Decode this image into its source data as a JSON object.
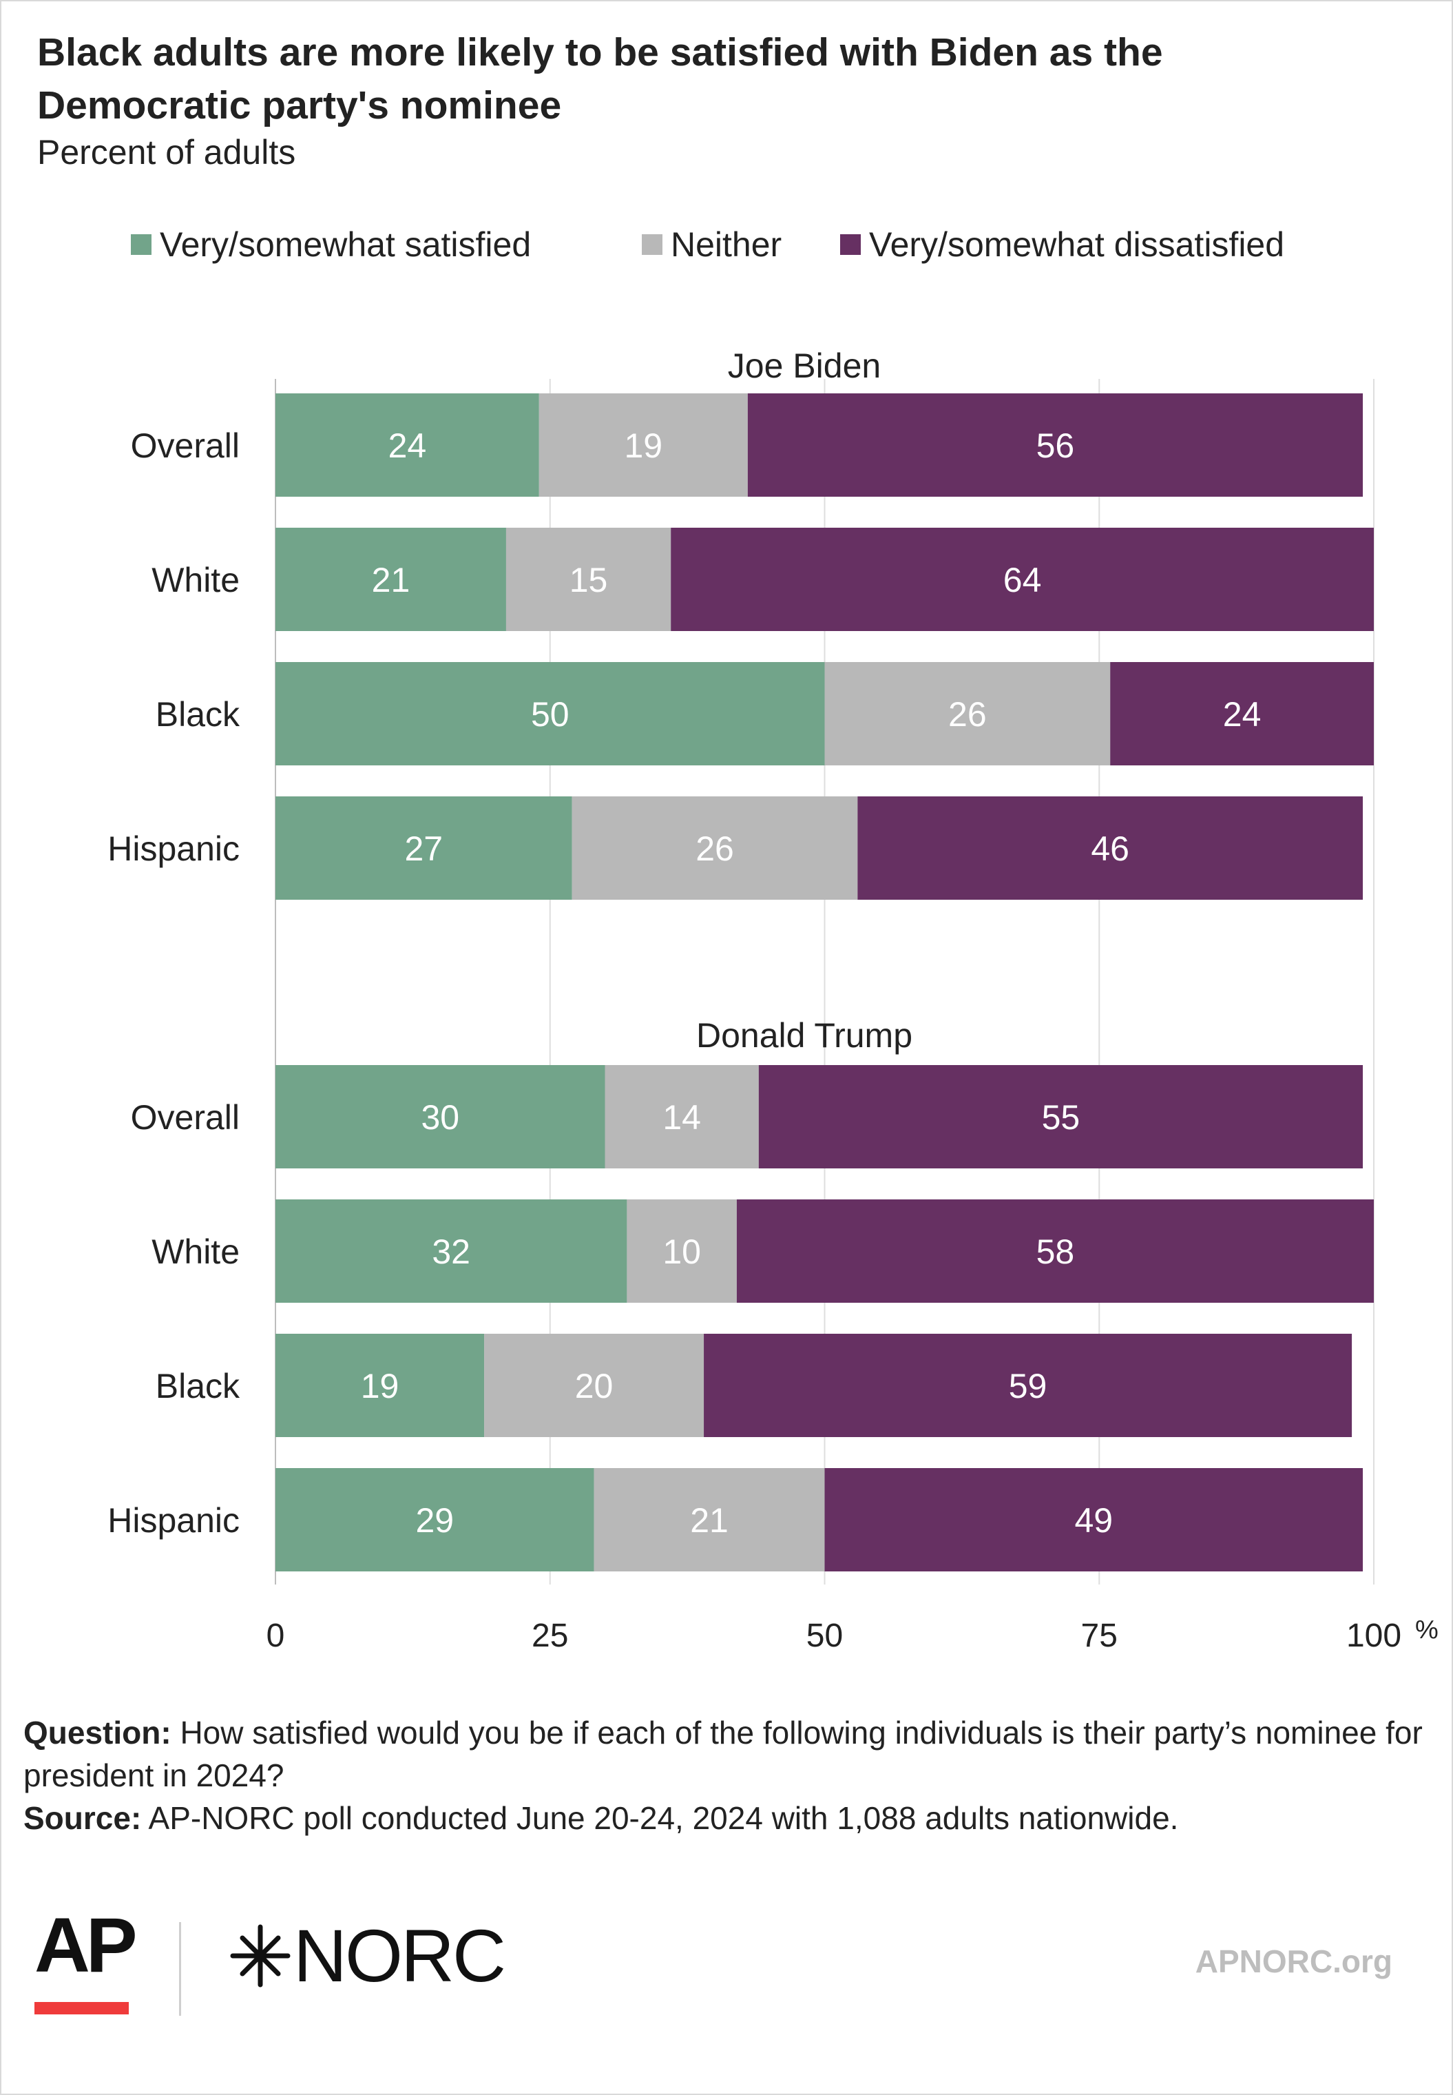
{
  "title": "Black adults are more likely to be satisfied with Biden as the Democratic party's nominee",
  "subtitle": "Percent of adults",
  "legend": [
    {
      "label": "Very/somewhat satisfied",
      "color": "#72a48a"
    },
    {
      "label": "Neither",
      "color": "#b8b8b8"
    },
    {
      "label": "Very/somewhat dissatisfied",
      "color": "#663062"
    }
  ],
  "chart_data": {
    "type": "bar",
    "orientation": "horizontal",
    "stacked": true,
    "xlim": [
      0,
      100
    ],
    "x_ticks": [
      "0",
      "25",
      "50",
      "75",
      "100"
    ],
    "x_unit": "%",
    "grid": true,
    "legend_position": "top",
    "series": [
      {
        "name": "Very/somewhat satisfied",
        "color": "#72a48a"
      },
      {
        "name": "Neither",
        "color": "#b8b8b8"
      },
      {
        "name": "Very/somewhat dissatisfied",
        "color": "#663062"
      }
    ],
    "panels": [
      {
        "title": "Joe Biden",
        "categories": [
          "Overall",
          "White",
          "Black",
          "Hispanic"
        ],
        "values": [
          [
            24,
            19,
            56
          ],
          [
            21,
            15,
            64
          ],
          [
            50,
            26,
            24
          ],
          [
            27,
            26,
            46
          ]
        ]
      },
      {
        "title": "Donald Trump",
        "categories": [
          "Overall",
          "White",
          "Black",
          "Hispanic"
        ],
        "values": [
          [
            30,
            14,
            55
          ],
          [
            32,
            10,
            58
          ],
          [
            19,
            20,
            59
          ],
          [
            29,
            21,
            49
          ]
        ]
      }
    ]
  },
  "notes": {
    "question_label": "Question:",
    "question_text": "How satisfied would you be if each of the following individuals is their party’s nominee for president in 2024?",
    "source_label": "Source:",
    "source_text": "AP-NORC poll conducted June 20-24, 2024 with 1,088 adults nationwide."
  },
  "footer": {
    "ap_logo": "AP",
    "norc_logo": "NORC",
    "website": "APNORC.org"
  }
}
